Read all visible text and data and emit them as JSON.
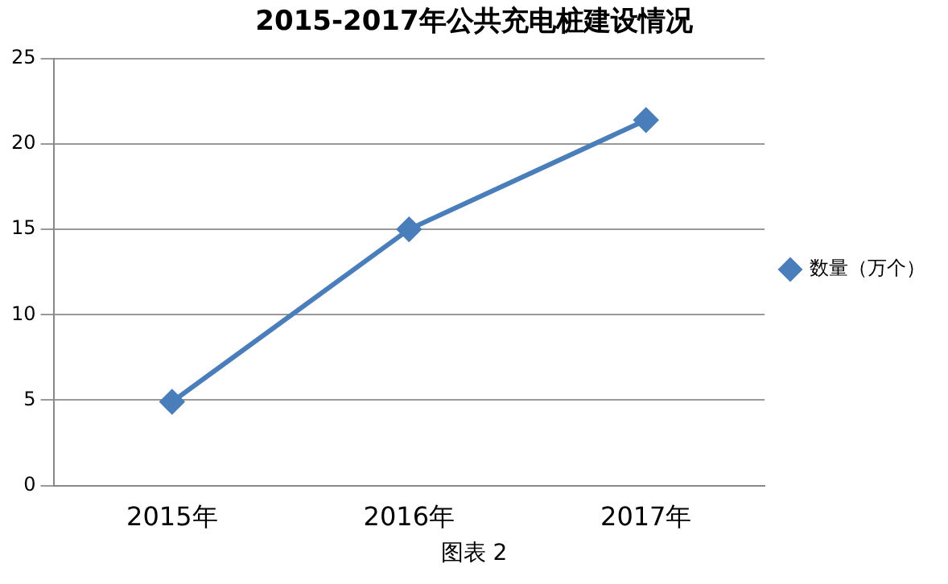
{
  "chart_data": {
    "type": "line",
    "title": "2015-2017年公共充电桩建设情况",
    "categories": [
      "2015年",
      "2016年",
      "2017年"
    ],
    "series": [
      {
        "name": "数量（万个）",
        "color": "#4a7ebb",
        "values": [
          4.9,
          15,
          21.4
        ]
      }
    ],
    "ylim": [
      0,
      25
    ],
    "yticks": [
      0,
      5,
      10,
      15,
      20,
      25
    ],
    "grid": "y",
    "legend": "right",
    "marker": "diamond",
    "line_style": "solid",
    "annotations": [
      "图表 2"
    ]
  }
}
